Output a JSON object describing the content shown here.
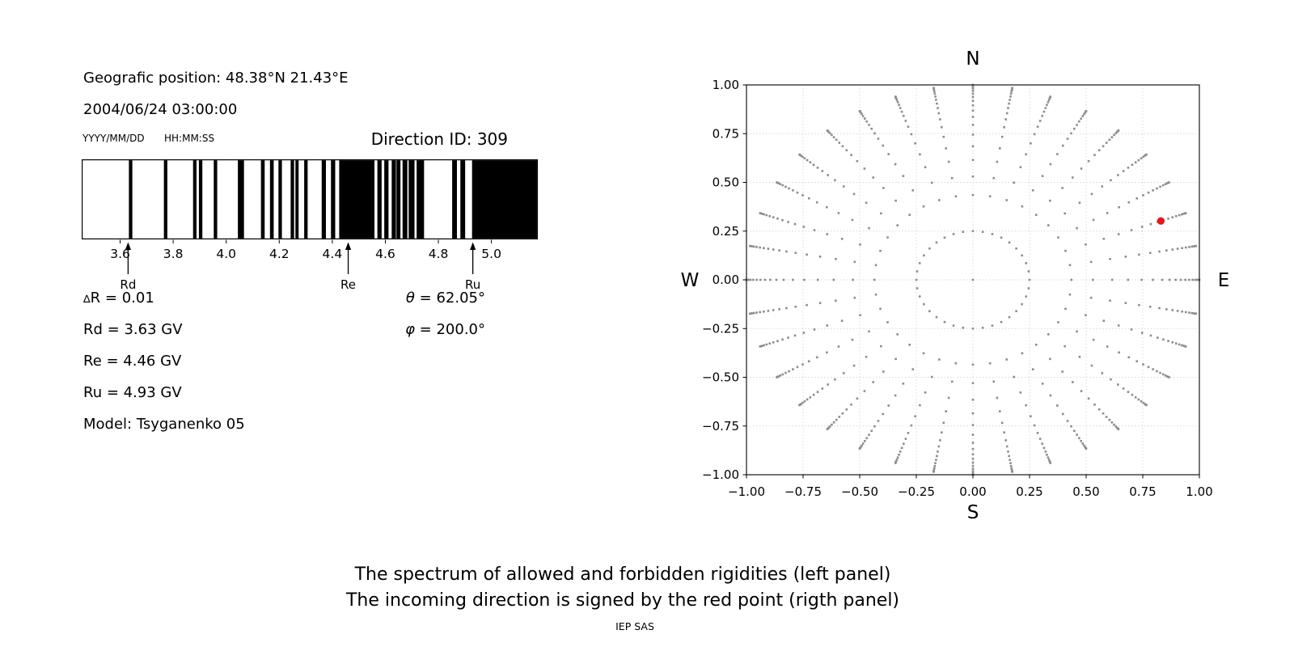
{
  "header": {
    "geo_position": "Geografic position: 48.38°N 21.43°E",
    "datetime": "2004/06/24 03:00:00",
    "date_format_label": "YYYY/MM/DD",
    "time_format_label": "HH:MM:SS",
    "direction_id": "Direction ID: 309"
  },
  "left_panel": {
    "delta_row": {
      "sym": "∆",
      "rest": "R = 0.01"
    },
    "rows": [
      "Rd = 3.63 GV",
      "Re = 4.46 GV",
      "Ru = 4.93 GV",
      "Model: Tsyganenko 05"
    ],
    "angle_rows": [
      {
        "sym": "θ",
        "rest": " = 62.05°"
      },
      {
        "sym": "φ",
        "rest": " = 200.0°"
      }
    ]
  },
  "chart_data": [
    {
      "id": "rigidity_spectrum",
      "type": "bar",
      "panel": "left",
      "description": "Barcode-style spectrum of allowed (black) and forbidden (white) rigidities",
      "x_domain_gv": [
        3.455,
        5.175
      ],
      "x_ticks": [
        3.6,
        3.8,
        4.0,
        4.2,
        4.4,
        4.6,
        4.8,
        5.0
      ],
      "x_tick_labels": [
        "3.6",
        "3.8",
        "4.0",
        "4.2",
        "4.4",
        "4.6",
        "4.8",
        "5.0"
      ],
      "bar_color": "#000000",
      "background": "#ffffff",
      "allowed_bands_gv": [
        [
          3.633,
          3.646
        ],
        [
          3.765,
          3.778
        ],
        [
          3.875,
          3.888
        ],
        [
          3.897,
          3.91
        ],
        [
          3.953,
          3.966
        ],
        [
          4.044,
          4.067
        ],
        [
          4.131,
          4.145
        ],
        [
          4.165,
          4.179
        ],
        [
          4.197,
          4.21
        ],
        [
          4.243,
          4.256
        ],
        [
          4.261,
          4.273
        ],
        [
          4.294,
          4.307
        ],
        [
          4.36,
          4.376
        ],
        [
          4.395,
          4.411
        ],
        [
          4.426,
          4.559
        ],
        [
          4.57,
          4.586
        ],
        [
          4.596,
          4.612
        ],
        [
          4.624,
          4.64
        ],
        [
          4.642,
          4.657
        ],
        [
          4.665,
          4.683
        ],
        [
          4.688,
          4.71
        ],
        [
          4.718,
          4.746
        ],
        [
          4.852,
          4.87
        ],
        [
          4.883,
          4.901
        ],
        [
          4.927,
          5.175
        ]
      ],
      "cutoff_markers": [
        {
          "label": "Rd",
          "value_gv": 3.63
        },
        {
          "label": "Re",
          "value_gv": 4.46
        },
        {
          "label": "Ru",
          "value_gv": 4.93
        }
      ]
    },
    {
      "id": "incoming_directions",
      "type": "scatter",
      "panel": "right",
      "xlim": [
        -1.0,
        1.0
      ],
      "ylim": [
        -1.0,
        1.0
      ],
      "x_ticks": [
        -1.0,
        -0.75,
        -0.5,
        -0.25,
        0.0,
        0.25,
        0.5,
        0.75,
        1.0
      ],
      "x_tick_labels": [
        "−1.00",
        "−0.75",
        "−0.50",
        "−0.25",
        "0.00",
        "0.25",
        "0.50",
        "0.75",
        "1.00"
      ],
      "y_ticks": [
        1.0,
        0.75,
        0.5,
        0.25,
        0.0,
        -0.25,
        -0.5,
        -0.75,
        -1.0
      ],
      "y_tick_labels": [
        "1.00",
        "0.75",
        "0.50",
        "0.25",
        "0.00",
        "−0.25",
        "−0.50",
        "−0.75",
        "−1.00"
      ],
      "grid": true,
      "grid_values": [
        -0.75,
        -0.5,
        -0.25,
        0.0,
        0.25,
        0.5,
        0.75
      ],
      "grid_color": "#d9d9d9",
      "compass": {
        "north": "N",
        "south": "S",
        "east": "E",
        "west": "W"
      },
      "direction_grid": {
        "azimuth_start_deg": 0,
        "azimuth_step_deg": 10,
        "azimuth_count": 36,
        "ring_radii": [
          0.25,
          0.435,
          0.53,
          0.615,
          0.685,
          0.745,
          0.795,
          0.836,
          0.868,
          0.895,
          0.918,
          0.938,
          0.955,
          0.97,
          0.982,
          0.991,
          0.997,
          1.0
        ],
        "center_dot": true,
        "dot_color": "#8d8d8d"
      },
      "red_point": {
        "x": 0.83,
        "y": 0.302,
        "color": "#ee1111",
        "meaning": "incoming direction"
      }
    }
  ],
  "caption": {
    "line1": "The spectrum of allowed and forbidden rigidities (left panel)",
    "line2": "The incoming direction is signed by the red point (rigth panel)",
    "credit": "IEP SAS"
  }
}
